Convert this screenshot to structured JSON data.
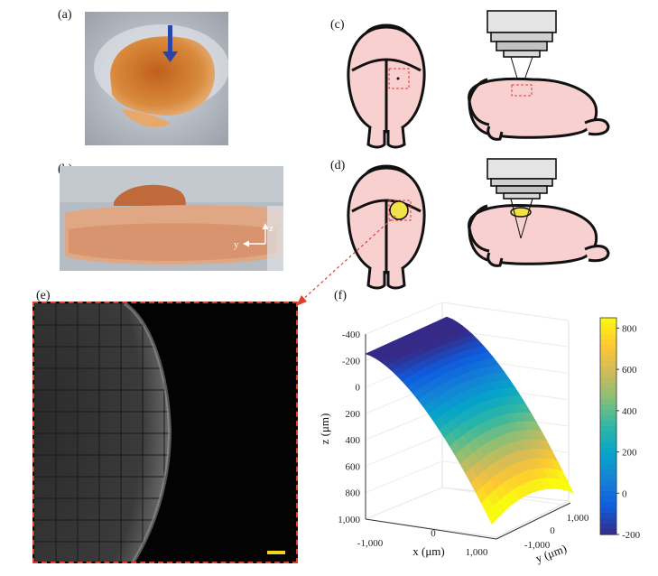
{
  "figure": {
    "panel_a": {
      "label": "(a)"
    },
    "panel_b": {
      "label": "(b)",
      "axis_z": "z",
      "axis_y": "y"
    },
    "panel_c": {
      "label": "(c)"
    },
    "panel_d": {
      "label": "(d)"
    },
    "panel_e": {
      "label": "(e)"
    },
    "panel_f": {
      "label": "(f)"
    }
  },
  "chart_data": {
    "type": "surface",
    "xlabel": "x (μm)",
    "ylabel": "y (μm)",
    "zlabel": "z (μm)",
    "x_ticks": [
      "-1,000",
      "0",
      "1,000"
    ],
    "y_ticks": [
      "-1,000",
      "0",
      "1,000"
    ],
    "z_ticks": [
      "-400",
      "-200",
      "0",
      "200",
      "400",
      "600",
      "800",
      "1,000"
    ],
    "zlim": [
      -400,
      1000
    ],
    "z_axis_reversed": true,
    "colorbar_ticks": [
      "800",
      "600",
      "400",
      "200",
      "0",
      "-200"
    ],
    "colorbar_range": [
      -200,
      850
    ],
    "colormap": "parula",
    "surface_z_min": -250,
    "surface_z_max": 850,
    "grid": true
  },
  "colors": {
    "brain_fill": "#f9d0d0",
    "highlight_yellow": "#f2e24a",
    "dashed_red": "#d9402a",
    "parula": [
      "#352a87",
      "#0f5cdd",
      "#1481d6",
      "#06a4ca",
      "#2eb7a4",
      "#87bf77",
      "#d1bb59",
      "#fec832",
      "#f9fb0e"
    ]
  }
}
